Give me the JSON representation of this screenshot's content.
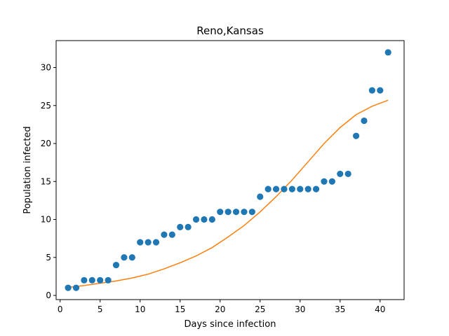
{
  "chart_data": {
    "type": "scatter",
    "title": "Reno,Kansas",
    "xlabel": "Days since infection",
    "ylabel": "Population infected",
    "xlim": [
      -0.5,
      43.0
    ],
    "ylim": [
      -0.55,
      33.55
    ],
    "xticks": [
      0,
      5,
      10,
      15,
      20,
      25,
      30,
      35,
      40
    ],
    "yticks": [
      0,
      5,
      10,
      15,
      20,
      25,
      30
    ],
    "grid": false,
    "series": [
      {
        "kind": "scatter",
        "color": "#1f77b4",
        "x": [
          1,
          2,
          3,
          4,
          5,
          6,
          7,
          8,
          9,
          10,
          11,
          12,
          13,
          14,
          15,
          16,
          17,
          18,
          19,
          20,
          21,
          22,
          23,
          24,
          25,
          26,
          27,
          28,
          29,
          30,
          31,
          32,
          33,
          34,
          35,
          36,
          37,
          38,
          39,
          40,
          41
        ],
        "y": [
          1,
          1,
          2,
          2,
          2,
          2,
          4,
          5,
          5,
          7,
          7,
          7,
          8,
          8,
          9,
          9,
          10,
          10,
          10,
          11,
          11,
          11,
          11,
          11,
          13,
          14,
          14,
          14,
          14,
          14,
          14,
          14,
          15,
          15,
          16,
          16,
          21,
          23,
          27,
          27,
          32
        ]
      },
      {
        "kind": "line",
        "color": "#ff7f0e",
        "x": [
          1,
          3,
          5,
          7,
          9,
          11,
          13,
          15,
          17,
          19,
          21,
          23,
          25,
          27,
          29,
          31,
          33,
          35,
          37,
          39,
          41
        ],
        "y": [
          1.05,
          1.3,
          1.6,
          1.9,
          2.3,
          2.8,
          3.5,
          4.3,
          5.2,
          6.3,
          7.7,
          9.2,
          11.0,
          13.0,
          15.2,
          17.6,
          20.0,
          22.1,
          23.8,
          24.9,
          25.7
        ]
      }
    ]
  }
}
